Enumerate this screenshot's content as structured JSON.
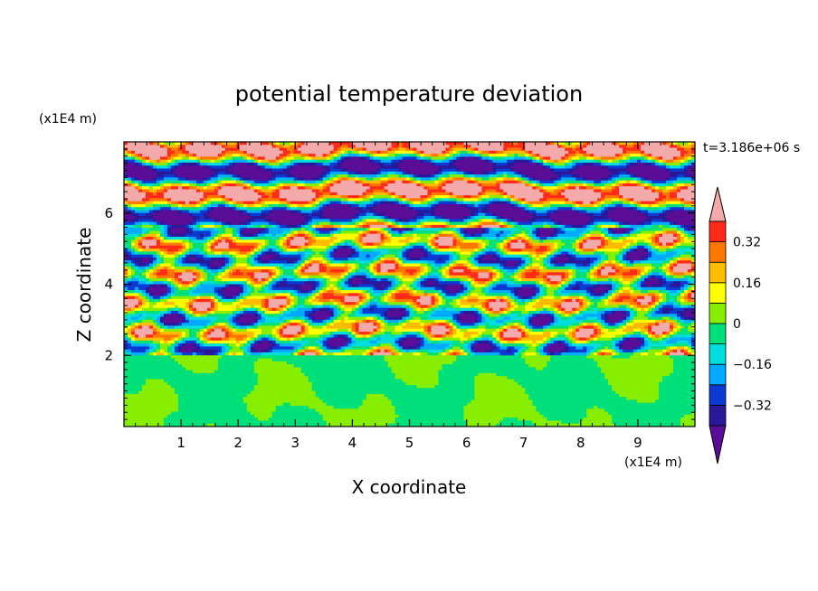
{
  "chart_data": {
    "type": "heatmap",
    "title": "potential temperature deviation",
    "xlabel": "X coordinate",
    "ylabel": "Z coordinate",
    "x_unit": "(x1E4 m)",
    "y_unit": "(x1E4 m)",
    "time_label": "t=3.186e+06 s",
    "xlim": [
      0,
      10
    ],
    "ylim": [
      0,
      8
    ],
    "x_ticks": [
      "1",
      "2",
      "3",
      "4",
      "5",
      "6",
      "7",
      "8",
      "9"
    ],
    "x_tick_values": [
      1,
      2,
      3,
      4,
      5,
      6,
      7,
      8,
      9
    ],
    "y_ticks": [
      "2",
      "4",
      "6"
    ],
    "y_tick_values": [
      2,
      4,
      6
    ],
    "colorbar": {
      "levels": [
        -0.4,
        -0.32,
        -0.24,
        -0.16,
        -0.08,
        0,
        0.08,
        0.16,
        0.24,
        0.32,
        0.4
      ],
      "tick_labels": [
        "0.32",
        "0.16",
        "0",
        "−0.16",
        "−0.32"
      ],
      "tick_values": [
        0.32,
        0.16,
        0,
        -0.16,
        -0.32
      ],
      "colors": [
        "#5a0d96",
        "#2a1898",
        "#0a3ad2",
        "#00aaff",
        "#00dddd",
        "#00e07a",
        "#88ee00",
        "#ffff00",
        "#ffbb00",
        "#ff7700",
        "#ff2a1a",
        "#f4aaaa"
      ]
    },
    "regions": [
      {
        "z_range": [
          0,
          2
        ],
        "description_values": [
          -0.08,
          0.08
        ]
      },
      {
        "z_range": [
          2,
          5.5
        ],
        "description_values": [
          -0.4,
          0.4
        ]
      },
      {
        "z_range": [
          5.5,
          8
        ],
        "description_values": [
          -0.4,
          0.4
        ]
      }
    ]
  }
}
